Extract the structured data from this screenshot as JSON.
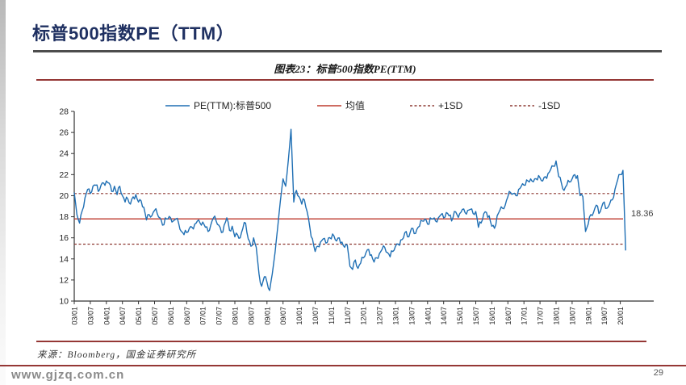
{
  "slide": {
    "title": "标普500指数PE（TTM）",
    "watermark": "www.gjzq.com.cn",
    "page_number": "29"
  },
  "figure": {
    "caption": "图表23：标普500指数PE(TTM)",
    "source": "来源：Bloomberg，国金证券研究所"
  },
  "colors": {
    "title_navy": "#1F3061",
    "divider_dark": "#4D4D4D",
    "divider_red": "#953735",
    "pe_line_blue": "#1F6FB4",
    "mean_red": "#BE3B2F",
    "sd_dark_red": "#8E3A33"
  },
  "chart_data": {
    "type": "line",
    "title": "图表23：标普500指数PE(TTM)",
    "xlabel": "",
    "ylabel": "",
    "ylim": [
      10,
      28
    ],
    "yticks": [
      10,
      12,
      14,
      16,
      18,
      20,
      22,
      24,
      26,
      28
    ],
    "xtick_labels": [
      "03/01",
      "03/07",
      "04/01",
      "04/07",
      "05/01",
      "05/07",
      "06/01",
      "06/07",
      "07/01",
      "07/07",
      "08/01",
      "08/07",
      "09/01",
      "09/07",
      "10/01",
      "10/07",
      "11/01",
      "11/07",
      "12/01",
      "12/07",
      "13/01",
      "13/07",
      "14/01",
      "14/07",
      "15/01",
      "15/07",
      "16/01",
      "16/07",
      "17/01",
      "17/07",
      "18/01",
      "18/07",
      "19/01",
      "19/07",
      "20/01"
    ],
    "x_start": "2003-01",
    "x_end": "2020-03",
    "x_frequency": "monthly",
    "grid": false,
    "legend_position": "top",
    "legend": [
      {
        "label": "PE(TTM):标普500",
        "color": "#1F6FB4",
        "style": "solid"
      },
      {
        "label": "均值",
        "color": "#BE3B2F",
        "style": "solid"
      },
      {
        "label": "+1SD",
        "color": "#8E3A33",
        "style": "dashed"
      },
      {
        "label": "-1SD",
        "color": "#8E3A33",
        "style": "dashed"
      }
    ],
    "series": [
      {
        "name": "PE(TTM):标普500",
        "color": "#1F6FB4",
        "values": [
          20.3,
          18.2,
          17.4,
          18.6,
          19.8,
          20.6,
          20.2,
          20.9,
          21.0,
          20.4,
          21.0,
          21.2,
          21.4,
          21.2,
          20.4,
          20.9,
          20.1,
          20.9,
          20.0,
          19.4,
          19.7,
          19.2,
          19.9,
          20.1,
          19.4,
          19.5,
          18.9,
          17.7,
          18.2,
          18.1,
          18.6,
          18.3,
          17.9,
          17.2,
          17.9,
          17.8,
          17.9,
          17.6,
          17.8,
          17.4,
          16.6,
          16.3,
          16.5,
          16.9,
          17.0,
          17.3,
          17.6,
          17.4,
          17.5,
          17.0,
          16.6,
          17.2,
          17.9,
          17.6,
          17.2,
          16.5,
          17.2,
          17.9,
          16.7,
          17.1,
          16.1,
          16.3,
          16.0,
          16.9,
          17.4,
          15.9,
          15.2,
          16.0,
          15.1,
          12.6,
          11.4,
          12.3,
          11.8,
          11.0,
          12.6,
          14.6,
          17.0,
          19.5,
          21.6,
          20.9,
          23.4,
          26.3,
          19.4,
          20.5,
          19.9,
          19.2,
          19.6,
          18.5,
          17.0,
          15.9,
          14.7,
          15.2,
          15.6,
          15.9,
          15.5,
          16.0,
          15.9,
          16.2,
          15.7,
          16.0,
          15.6,
          15.1,
          15.3,
          13.3,
          13.0,
          13.9,
          13.1,
          13.6,
          14.1,
          14.6,
          14.9,
          14.4,
          13.7,
          14.1,
          14.5,
          14.9,
          15.1,
          14.6,
          14.2,
          14.7,
          15.2,
          15.4,
          15.8,
          16.0,
          16.6,
          16.1,
          16.9,
          16.4,
          16.8,
          17.1,
          17.6,
          17.8,
          17.3,
          17.9,
          17.8,
          17.6,
          17.9,
          18.2,
          17.9,
          18.4,
          18.1,
          17.6,
          18.5,
          18.2,
          18.3,
          18.7,
          18.4,
          18.6,
          18.7,
          18.3,
          18.5,
          17.0,
          17.4,
          18.3,
          18.4,
          18.1,
          17.1,
          16.9,
          18.1,
          18.6,
          18.8,
          19.1,
          19.9,
          20.3,
          20.2,
          20.0,
          20.6,
          20.9,
          21.0,
          21.5,
          21.3,
          21.4,
          21.6,
          21.5,
          21.7,
          21.4,
          21.8,
          22.1,
          22.5,
          22.8,
          23.3,
          21.8,
          21.2,
          20.5,
          21.0,
          21.3,
          21.6,
          22.0,
          21.9,
          20.0,
          19.9,
          16.6,
          17.3,
          18.2,
          18.4,
          19.1,
          18.3,
          18.9,
          19.4,
          18.8,
          19.2,
          19.6,
          20.6,
          21.5,
          22.0,
          22.4,
          14.8
        ]
      }
    ],
    "reference_lines": [
      {
        "name": "均值",
        "value": 17.8,
        "color": "#BE3B2F",
        "style": "solid"
      },
      {
        "name": "+1SD",
        "value": 20.2,
        "color": "#8E3A33",
        "style": "dashed"
      },
      {
        "name": "-1SD",
        "value": 15.4,
        "color": "#8E3A33",
        "style": "dashed"
      }
    ],
    "annotation": {
      "text": "18.36",
      "value": 18.36
    }
  }
}
